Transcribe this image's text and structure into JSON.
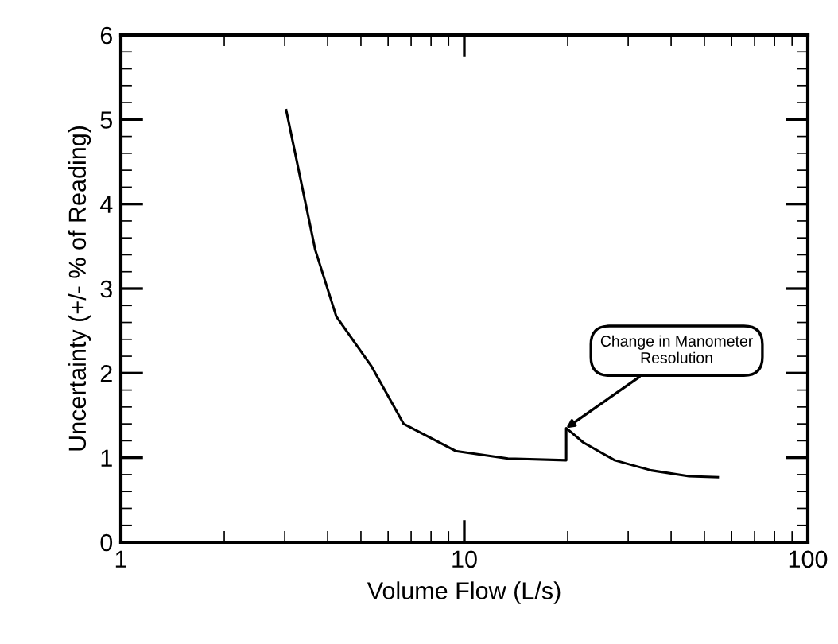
{
  "chart_data": {
    "type": "line",
    "xlabel": "Volume Flow (L/s)",
    "ylabel": "Uncertainty (+/- % of Reading)",
    "log": "x",
    "xlim": [
      1,
      100
    ],
    "xticks": [
      1,
      10,
      100
    ],
    "ylim": [
      0,
      6
    ],
    "yticks": [
      0,
      1,
      2,
      3,
      4,
      5,
      6
    ],
    "grid": false,
    "marker": "none",
    "line_style": "solid",
    "series": [
      {
        "color": "#000000",
        "x": [
          3.03,
          3.68,
          4.24,
          5.35,
          6.66,
          9.43,
          13.4,
          19.8,
          19.8,
          22.2,
          27.4,
          35.0,
          45.1,
          54.7
        ],
        "values": [
          5.11,
          3.46,
          2.67,
          2.09,
          1.4,
          1.08,
          0.99,
          0.97,
          1.35,
          1.18,
          0.97,
          0.85,
          0.78,
          0.77
        ]
      }
    ],
    "annotations": [
      {
        "text": "Change in Manometer\nResolution",
        "x": 19.8,
        "y": 1.35
      }
    ]
  }
}
